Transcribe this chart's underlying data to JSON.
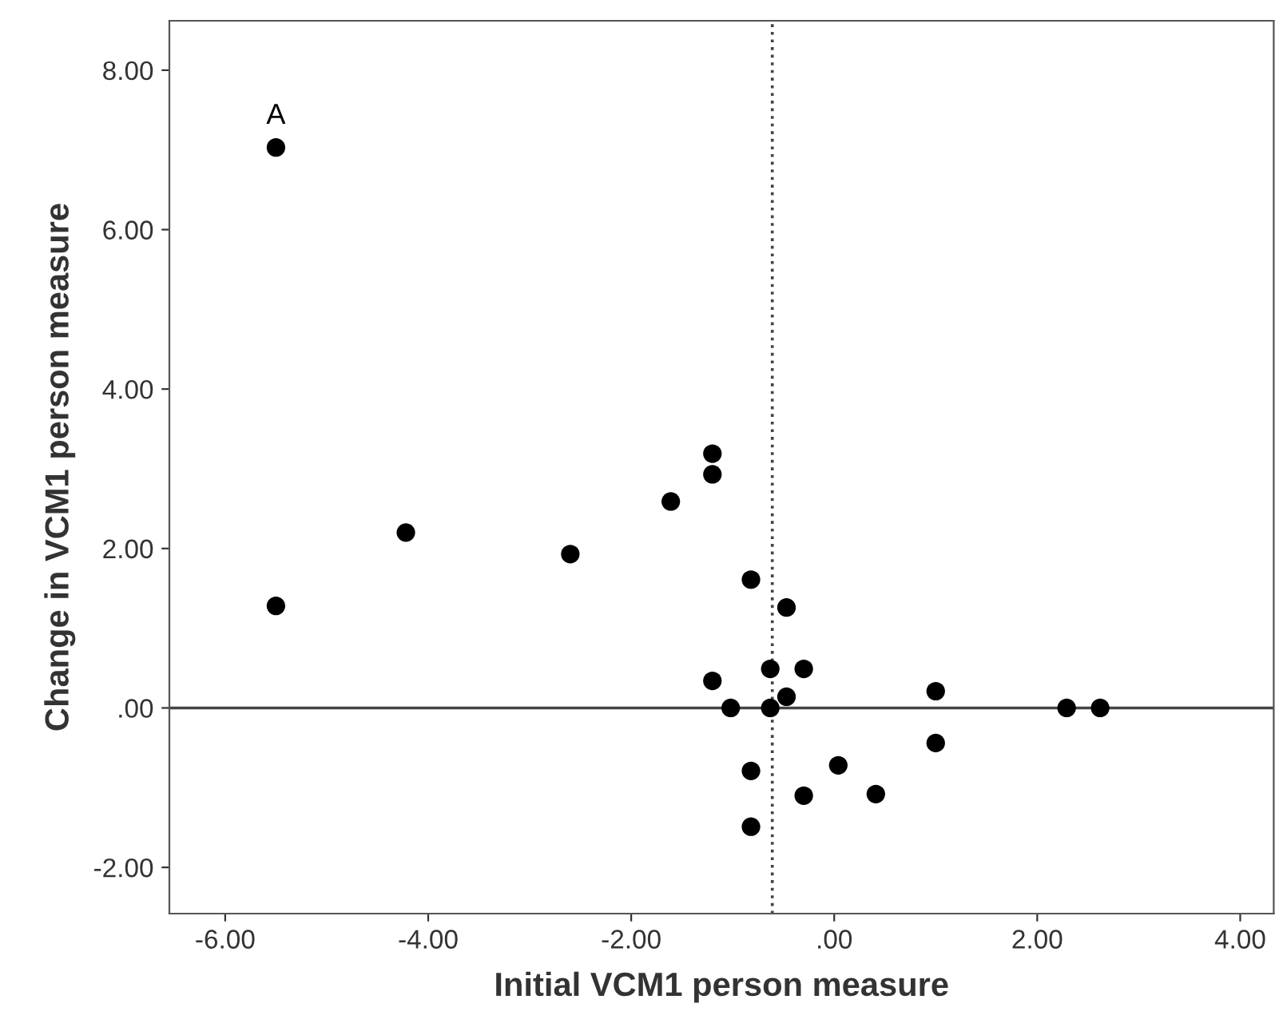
{
  "chart_data": {
    "type": "scatter",
    "xlabel": "Initial VCM1 person measure",
    "ylabel": "Change in VCM1 person measure",
    "x": [
      -5.5,
      -5.5,
      -4.22,
      -2.6,
      -1.61,
      -1.2,
      -1.2,
      -0.82,
      -0.47,
      -1.2,
      -0.63,
      -0.3,
      -0.47,
      -1.02,
      -0.63,
      1.0,
      1.0,
      2.29,
      2.62,
      -0.82,
      0.04,
      -0.3,
      0.41,
      -0.82
    ],
    "series": [
      {
        "color": "#000000",
        "values": [
          7.03,
          1.28,
          2.2,
          1.93,
          2.59,
          3.19,
          2.93,
          1.61,
          1.26,
          0.34,
          0.49,
          0.49,
          0.14,
          0.0,
          0.0,
          0.21,
          -0.44,
          0.0,
          0.0,
          -0.79,
          -0.72,
          -1.1,
          -1.08,
          -1.49
        ]
      }
    ],
    "marker": "circle",
    "xlim": [
      -6.55,
      4.33
    ],
    "ylim": [
      -2.58,
      8.62
    ],
    "xticks": [
      {
        "value": -6,
        "label": "-6.00"
      },
      {
        "value": -4,
        "label": "-4.00"
      },
      {
        "value": -2,
        "label": "-2.00"
      },
      {
        "value": 0,
        "label": ".00"
      },
      {
        "value": 2,
        "label": "2.00"
      },
      {
        "value": 4,
        "label": "4.00"
      }
    ],
    "yticks": [
      {
        "value": -2,
        "label": "-2.00"
      },
      {
        "value": 0,
        "label": ".00"
      },
      {
        "value": 2,
        "label": "2.00"
      },
      {
        "value": 4,
        "label": "4.00"
      },
      {
        "value": 6,
        "label": "6.00"
      },
      {
        "value": 8,
        "label": "8.00"
      }
    ],
    "ref_lines": [
      {
        "axis": "y",
        "value": 0,
        "label": null,
        "color": "#444444",
        "line_style": "solid"
      },
      {
        "axis": "x",
        "value": -0.61,
        "label": null,
        "color": "#444444",
        "line_style": "dotted"
      }
    ],
    "annotations": [
      {
        "text": "A",
        "x": -5.5,
        "y": 7.03
      }
    ],
    "grid": false
  }
}
